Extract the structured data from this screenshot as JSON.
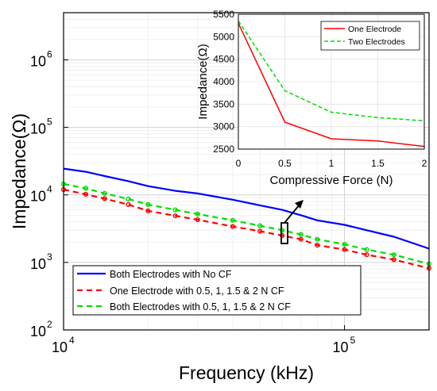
{
  "chart_data": [
    {
      "type": "line",
      "xlabel": "Frequency (kHz)",
      "ylabel": "Impedance(Ω)",
      "xscale": "log",
      "yscale": "log",
      "xlim": [
        10000,
        200000
      ],
      "ylim": [
        100,
        5000000
      ],
      "grid": true,
      "x_ticks": [
        {
          "value": 10000,
          "base": "10",
          "exp": "4"
        },
        {
          "value": 100000,
          "base": "10",
          "exp": "5"
        }
      ],
      "y_ticks": [
        {
          "value": 100,
          "base": "10",
          "exp": "2"
        },
        {
          "value": 1000,
          "base": "10",
          "exp": "3"
        },
        {
          "value": 10000,
          "base": "10",
          "exp": "4"
        },
        {
          "value": 100000,
          "base": "10",
          "exp": "5"
        },
        {
          "value": 1000000,
          "base": "10",
          "exp": "6"
        }
      ],
      "legend_position": "bottom-left",
      "series": [
        {
          "name": "Both Electrodes with No CF",
          "color": "#0000ff",
          "style": "solid",
          "x": [
            10000,
            12000,
            14000,
            17000,
            20000,
            25000,
            30000,
            40000,
            50000,
            60000,
            70000,
            80000,
            100000,
            120000,
            150000,
            200000
          ],
          "y": [
            24500,
            22000,
            19000,
            16000,
            13500,
            11500,
            10500,
            8500,
            7000,
            6000,
            5000,
            4200,
            3600,
            3000,
            2400,
            1600
          ]
        },
        {
          "name": "One Electrode with 0.5, 1, 1.5 & 2 N CF",
          "color": "#ff0000",
          "style": "dashed",
          "x": [
            10000,
            12000,
            14000,
            17000,
            20000,
            25000,
            30000,
            40000,
            50000,
            60000,
            70000,
            80000,
            100000,
            120000,
            150000,
            200000
          ],
          "y": [
            12000,
            10200,
            8800,
            7200,
            5800,
            4900,
            4300,
            3400,
            2900,
            2500,
            2200,
            1800,
            1550,
            1300,
            1100,
            820
          ]
        },
        {
          "name": "Both Electrodes with 0.5, 1, 1.5 & 2 N CF",
          "color": "#00dd00",
          "style": "dashed",
          "x": [
            10000,
            12000,
            14000,
            17000,
            20000,
            25000,
            30000,
            40000,
            50000,
            60000,
            70000,
            80000,
            100000,
            120000,
            150000,
            200000
          ],
          "y": [
            14500,
            12500,
            10500,
            8700,
            7200,
            6000,
            5200,
            4200,
            3500,
            3000,
            2600,
            2200,
            1850,
            1550,
            1300,
            950
          ]
        }
      ]
    },
    {
      "type": "line",
      "xlabel": "Compressive Force (N)",
      "ylabel": "Impedance(Ω)",
      "xlim": [
        0,
        2
      ],
      "ylim": [
        2500,
        5500
      ],
      "grid": true,
      "x_ticks": [
        "0",
        "0.5",
        "1",
        "1.5",
        "2"
      ],
      "y_ticks": [
        "2500",
        "3000",
        "3500",
        "4000",
        "4500",
        "5000",
        "5500"
      ],
      "legend_position": "top-right",
      "series": [
        {
          "name": "One Electrode",
          "color": "#ff0000",
          "style": "solid",
          "x": [
            0,
            0.5,
            1,
            1.5,
            2
          ],
          "y": [
            5300,
            3100,
            2730,
            2680,
            2560
          ]
        },
        {
          "name": "Two Electrodes",
          "color": "#00dd00",
          "style": "dashed",
          "x": [
            0,
            0.5,
            1,
            1.5,
            2
          ],
          "y": [
            5350,
            3800,
            3320,
            3200,
            3130
          ]
        }
      ]
    }
  ]
}
